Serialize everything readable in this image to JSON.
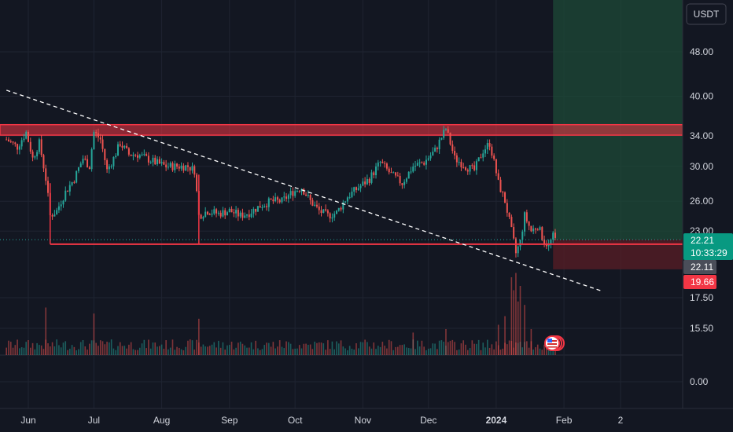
{
  "currency_button": {
    "label": "USDT"
  },
  "colors": {
    "background": "#131722",
    "up": "#26a69a",
    "down": "#ef5350",
    "resistance_zone": "#f23645",
    "target_zone": "#1e4a37",
    "stop_zone": "#5a1e26",
    "trendline": "#ffffff",
    "grid": "#1f2431"
  },
  "chart_data": {
    "type": "candlestick",
    "symbol_quote": "USDT",
    "y_axis_ticks": [
      "48.00",
      "40.00",
      "34.00",
      "30.00",
      "26.00",
      "23.00",
      "17.50",
      "15.50",
      "0.00"
    ],
    "y_axis_scale": "log",
    "x_axis_ticks": [
      "Jun",
      "Jul",
      "Aug",
      "Sep",
      "Oct",
      "Nov",
      "Dec",
      "2024",
      "Feb",
      "2"
    ],
    "price_tags": {
      "last_price": "22.21",
      "countdown": "10:33:29",
      "secondary_price": "22.11",
      "stop_price": "19.66"
    },
    "resistance_zone": {
      "low": 34.1,
      "high": 35.6
    },
    "support_level": 21.8,
    "position": {
      "entry": 22.2,
      "target": 60,
      "stop": 19.66,
      "start": "2024-01-27"
    },
    "trendline": {
      "from": {
        "date": "2023-05-22",
        "price": 41
      },
      "to": {
        "date": "2024-02-18",
        "price": 18
      }
    },
    "price_path": [
      [
        "2023-05-22",
        33.5
      ],
      [
        "2023-05-27",
        32.5
      ],
      [
        "2023-05-31",
        34.5
      ],
      [
        "2023-06-03",
        31.0
      ],
      [
        "2023-06-06",
        33.0
      ],
      [
        "2023-06-09",
        28.5
      ],
      [
        "2023-06-11",
        24.5
      ],
      [
        "2023-06-14",
        25.0
      ],
      [
        "2023-06-18",
        27.0
      ],
      [
        "2023-06-22",
        28.5
      ],
      [
        "2023-06-26",
        31.0
      ],
      [
        "2023-06-29",
        30.0
      ],
      [
        "2023-07-01",
        34.5
      ],
      [
        "2023-07-04",
        33.5
      ],
      [
        "2023-07-07",
        29.5
      ],
      [
        "2023-07-10",
        31.0
      ],
      [
        "2023-07-13",
        33.0
      ],
      [
        "2023-07-17",
        31.5
      ],
      [
        "2023-07-21",
        31.5
      ],
      [
        "2023-07-25",
        31.0
      ],
      [
        "2023-07-29",
        30.5
      ],
      [
        "2023-08-03",
        30.0
      ],
      [
        "2023-08-08",
        30.0
      ],
      [
        "2023-08-13",
        30.0
      ],
      [
        "2023-08-16",
        29.5
      ],
      [
        "2023-08-18",
        24.5
      ],
      [
        "2023-08-22",
        25.0
      ],
      [
        "2023-08-27",
        24.7
      ],
      [
        "2023-09-01",
        25.0
      ],
      [
        "2023-09-06",
        24.5
      ],
      [
        "2023-09-10",
        24.8
      ],
      [
        "2023-09-15",
        25.5
      ],
      [
        "2023-09-20",
        26.0
      ],
      [
        "2023-09-25",
        26.0
      ],
      [
        "2023-09-30",
        27.0
      ],
      [
        "2023-10-04",
        27.5
      ],
      [
        "2023-10-08",
        26.0
      ],
      [
        "2023-10-12",
        25.0
      ],
      [
        "2023-10-16",
        24.5
      ],
      [
        "2023-10-20",
        24.8
      ],
      [
        "2023-10-25",
        26.5
      ],
      [
        "2023-10-30",
        27.5
      ],
      [
        "2023-11-04",
        28.5
      ],
      [
        "2023-11-09",
        30.5
      ],
      [
        "2023-11-14",
        29.0
      ],
      [
        "2023-11-19",
        28.0
      ],
      [
        "2023-11-24",
        30.0
      ],
      [
        "2023-11-29",
        30.5
      ],
      [
        "2023-12-04",
        32.0
      ],
      [
        "2023-12-09",
        35.0
      ],
      [
        "2023-12-13",
        31.0
      ],
      [
        "2023-12-18",
        30.0
      ],
      [
        "2023-12-22",
        29.5
      ],
      [
        "2023-12-26",
        32.0
      ],
      [
        "2023-12-29",
        33.0
      ],
      [
        "2024-01-02",
        28.0
      ],
      [
        "2024-01-05",
        26.0
      ],
      [
        "2024-01-08",
        23.0
      ],
      [
        "2024-01-10",
        21.0
      ],
      [
        "2024-01-12",
        22.0
      ],
      [
        "2024-01-14",
        24.5
      ],
      [
        "2024-01-17",
        23.0
      ],
      [
        "2024-01-20",
        23.5
      ],
      [
        "2024-01-23",
        22.0
      ],
      [
        "2024-01-25",
        21.7
      ],
      [
        "2024-01-27",
        22.5
      ],
      [
        "2024-01-28",
        22.21
      ]
    ],
    "volume_spikes": [
      [
        "2023-06-09",
        0.55
      ],
      [
        "2023-07-01",
        0.48
      ],
      [
        "2023-08-18",
        0.42
      ],
      [
        "2023-11-24",
        0.26
      ],
      [
        "2023-12-09",
        0.3
      ],
      [
        "2024-01-02",
        0.35
      ],
      [
        "2024-01-05",
        0.45
      ],
      [
        "2024-01-08",
        0.9
      ],
      [
        "2024-01-09",
        0.75
      ],
      [
        "2024-01-10",
        0.95
      ],
      [
        "2024-01-11",
        0.62
      ],
      [
        "2024-01-12",
        0.8
      ],
      [
        "2024-01-14",
        0.58
      ],
      [
        "2024-01-17",
        0.3
      ]
    ]
  }
}
